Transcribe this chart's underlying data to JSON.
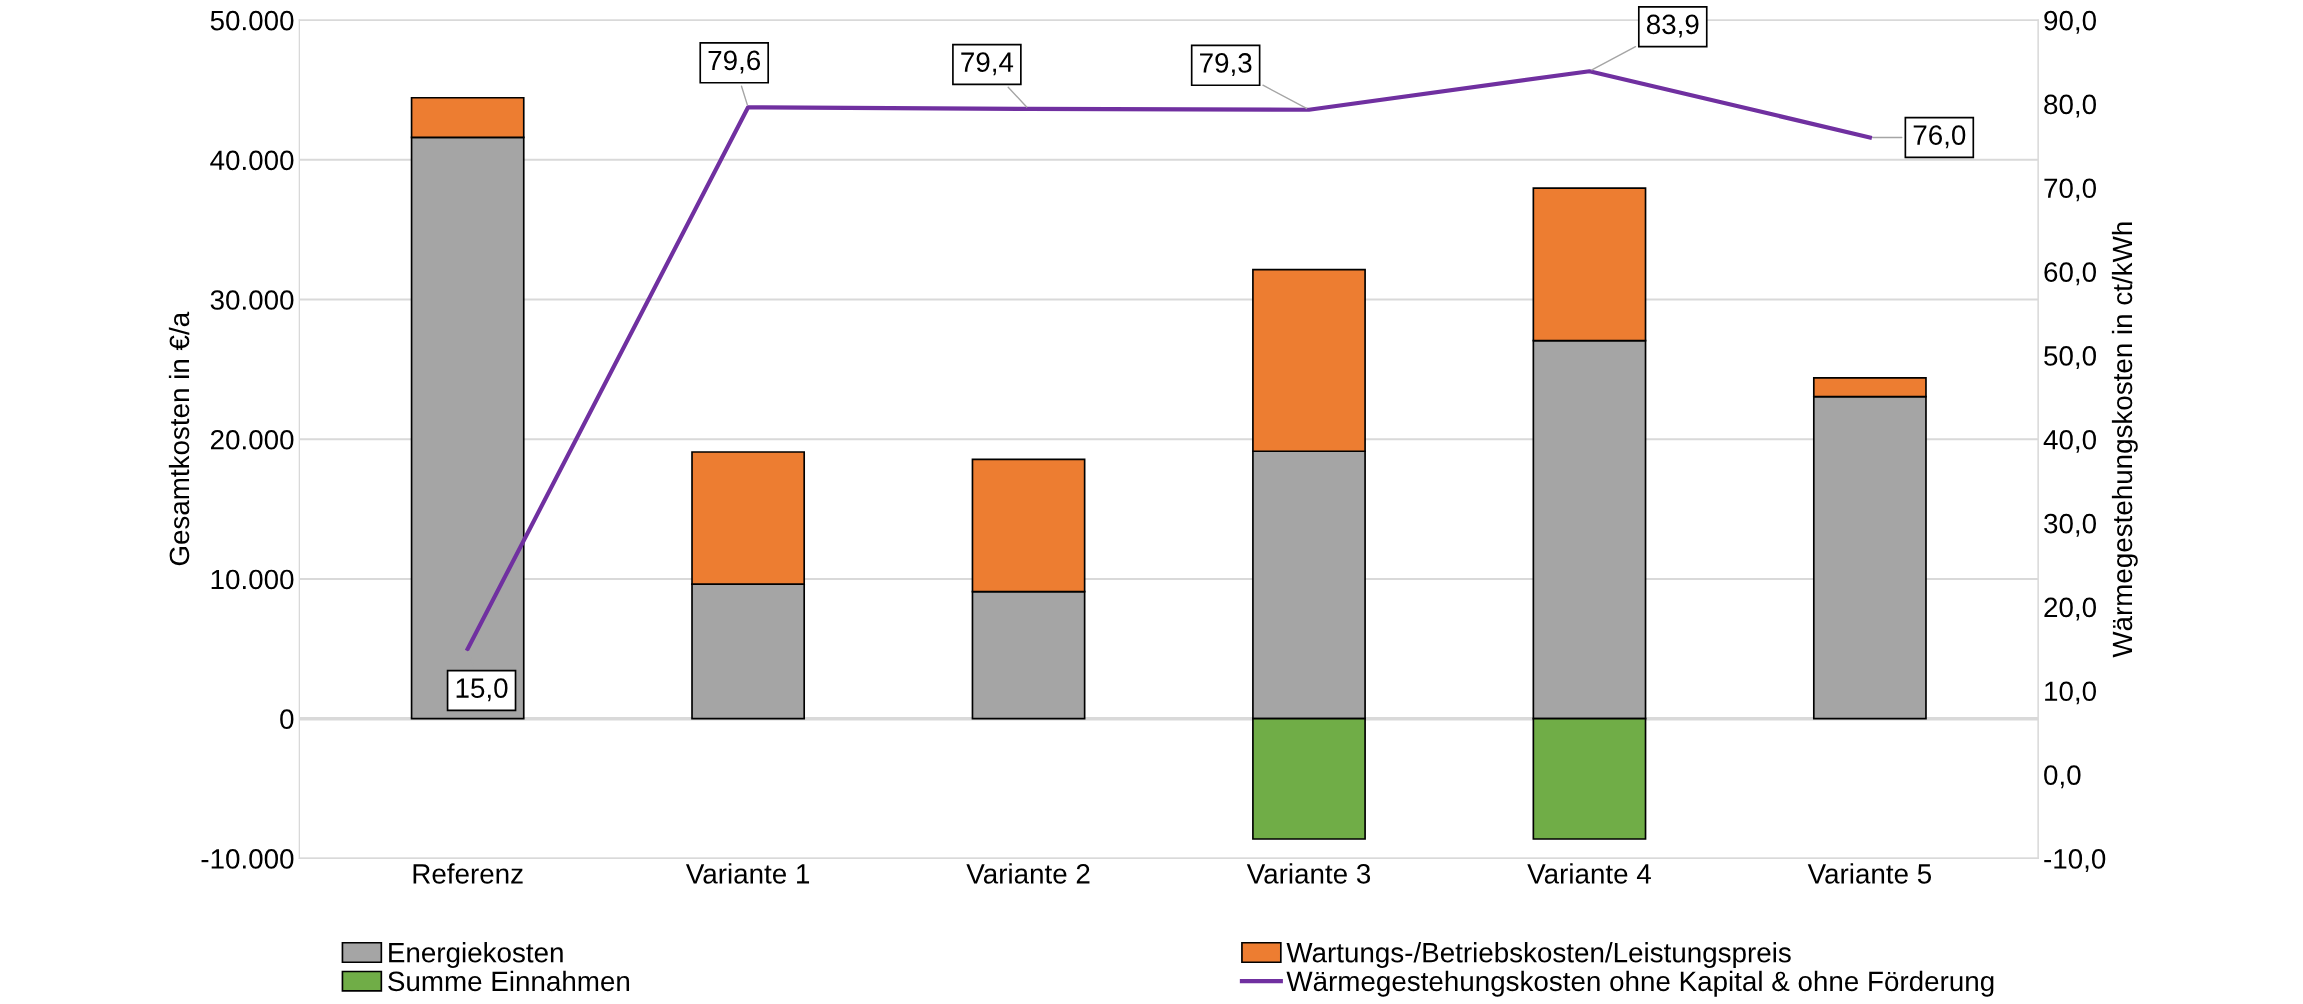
{
  "chart_data": {
    "type": "bar",
    "stacked": true,
    "ylabel": "Gesamtkosten in €/a",
    "y2label": "Wärmegestehungskosten in ct/kWh",
    "categories": [
      "Referenz",
      "Variante 1",
      "Variante 2",
      "Variante 3",
      "Variante 4",
      "Variante 5"
    ],
    "series": [
      {
        "name": "Energiekosten",
        "color": "#a5a5a5",
        "values": [
          41600,
          9630,
          9090,
          19140,
          27060,
          23050
        ]
      },
      {
        "name": "Wartungs-/Betriebskosten/Leistungspreis",
        "color": "#ed7d31",
        "values": [
          2840,
          9460,
          9470,
          13000,
          10910,
          1340
        ]
      },
      {
        "name": "Summe Einnahmen",
        "color": "#70ad47",
        "values": [
          null,
          null,
          null,
          -8610,
          -8610,
          null
        ]
      },
      {
        "name": "Wärmegestehungskosten ohne Kapital & ohne Förderung",
        "type": "line",
        "axis": "y2",
        "color": "#7030a0",
        "values": [
          15.0,
          79.6,
          79.4,
          79.3,
          83.9,
          76.0
        ],
        "value_labels": [
          "15,0",
          "79,6",
          "79,4",
          "79,3",
          "83,9",
          "76,0"
        ]
      }
    ],
    "ylim": [
      -10000,
      50000
    ],
    "yticks": [
      {
        "value": -10000,
        "label": "-10.000"
      },
      0,
      {
        "value": 10000,
        "label": "10.000"
      },
      {
        "value": 20000,
        "label": "20.000"
      },
      {
        "value": 30000,
        "label": "30.000"
      },
      {
        "value": 40000,
        "label": "40.000"
      },
      {
        "value": 50000,
        "label": "50.000"
      }
    ],
    "y2lim": [
      -10,
      90
    ],
    "y2ticks": [
      {
        "value": -10,
        "label": "-10,0"
      },
      {
        "value": 0,
        "label": "0,0"
      },
      {
        "value": 10,
        "label": "10,0"
      },
      {
        "value": 20,
        "label": "20,0"
      },
      {
        "value": 30,
        "label": "30,0"
      },
      {
        "value": 40,
        "label": "40,0"
      },
      {
        "value": 50,
        "label": "50,0"
      },
      {
        "value": 60,
        "label": "60,0"
      },
      {
        "value": 70,
        "label": "70,0"
      },
      {
        "value": 80,
        "label": "80,0"
      },
      {
        "value": 90,
        "label": "90,0"
      }
    ],
    "grid": "y",
    "legend": "bottom",
    "marker": "none",
    "line_style": "solid"
  }
}
